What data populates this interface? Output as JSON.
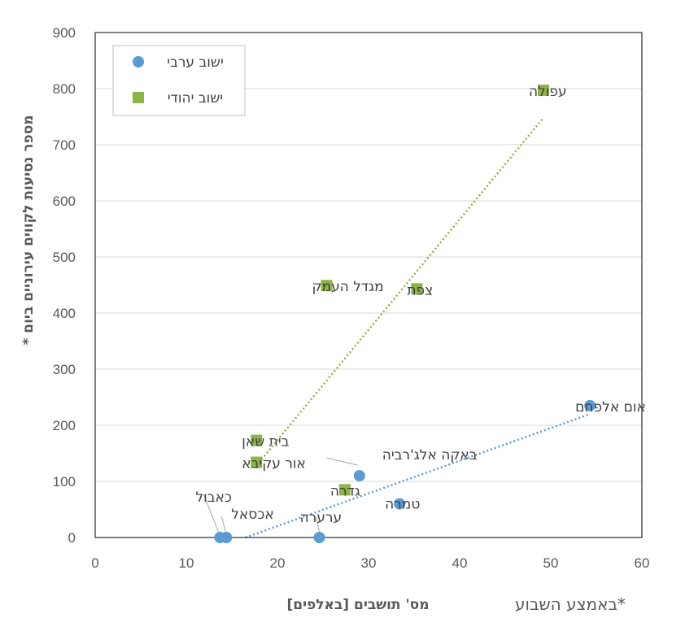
{
  "chart_data": {
    "type": "scatter",
    "xlabel": "מס' תושבים [באלפים]",
    "ylabel": "מספר נסיעות לקווים עירוניים ביום *",
    "footnote": "*באמצע השבוע",
    "xlim": [
      0,
      60
    ],
    "ylim": [
      0,
      900
    ],
    "xticks": [
      0,
      10,
      20,
      30,
      40,
      50,
      60
    ],
    "yticks": [
      0,
      100,
      200,
      300,
      400,
      500,
      600,
      700,
      800,
      900
    ],
    "grid": "horizontal",
    "legend_position": "top-left",
    "series": [
      {
        "name": "ישוב ערבי",
        "marker": "circle",
        "color": "#5B9BD5",
        "points": [
          {
            "label": "אום אלפחם",
            "x": 54.3,
            "y": 235
          },
          {
            "label": "טמרה",
            "x": 33.4,
            "y": 60
          },
          {
            "label": "באקה אלג'רביה",
            "x": 29.0,
            "y": 110
          },
          {
            "label": "ערערה",
            "x": 24.6,
            "y": 0
          },
          {
            "label": "כאבול",
            "x": 13.7,
            "y": 0
          },
          {
            "label": "אכסאל",
            "x": 14.4,
            "y": 0
          }
        ],
        "trendline": {
          "x": [
            16.5,
            54.3
          ],
          "y": [
            0,
            220
          ]
        }
      },
      {
        "name": "ישוב יהודי",
        "marker": "square",
        "color": "#8DB446",
        "points": [
          {
            "label": "עפולה",
            "x": 49.2,
            "y": 797
          },
          {
            "label": "צפת",
            "x": 35.3,
            "y": 443
          },
          {
            "label": "מגדל העמק",
            "x": 25.4,
            "y": 449
          },
          {
            "label": "בית שאן",
            "x": 17.7,
            "y": 173
          },
          {
            "label": "אור עקיבא",
            "x": 17.7,
            "y": 134
          },
          {
            "label": "גדרה",
            "x": 27.4,
            "y": 85
          }
        ],
        "trendline": {
          "x": [
            17.7,
            49.2
          ],
          "y": [
            128,
            748
          ]
        }
      }
    ]
  }
}
